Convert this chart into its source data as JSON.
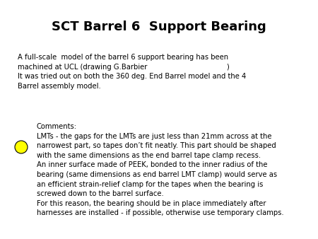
{
  "title": "SCT Barrel 6  Support Bearing",
  "background_color": "#ffffff",
  "title_fontsize": 13,
  "title_fontweight": "bold",
  "body_fontsize": 7.2,
  "body_color": "#000000",
  "paragraph1": "A full-scale  model of the barrel 6 support bearing has been\nmachined at UCL (drawing G.Barbier                                    )\nIt was tried out on both the 360 deg. End Barrel model and the 4\nBarrel assembly model.",
  "comments_label": "Comments:",
  "paragraph2": "LMTs - the gaps for the LMTs are just less than 21mm across at the\nnarrowest part, so tapes don’t fit neatly. This part should be shaped\nwith the same dimensions as the end barrel tape clamp recess.\nAn inner surface made of PEEK, bonded to the inner radius of the\nbearing (same dimensions as end barrel LMT clamp) would serve as\nan efficient strain-relief clamp for the tapes when the bearing is\nscrewed down to the barrel surface.\nFor this reason, the bearing should be in place immediately after\nharnesses are installed - if possible, otherwise use temporary clamps.",
  "circle_color": "#ffff00",
  "circle_edge_color": "#000000",
  "fig_width": 4.5,
  "fig_height": 3.38,
  "dpi": 100
}
